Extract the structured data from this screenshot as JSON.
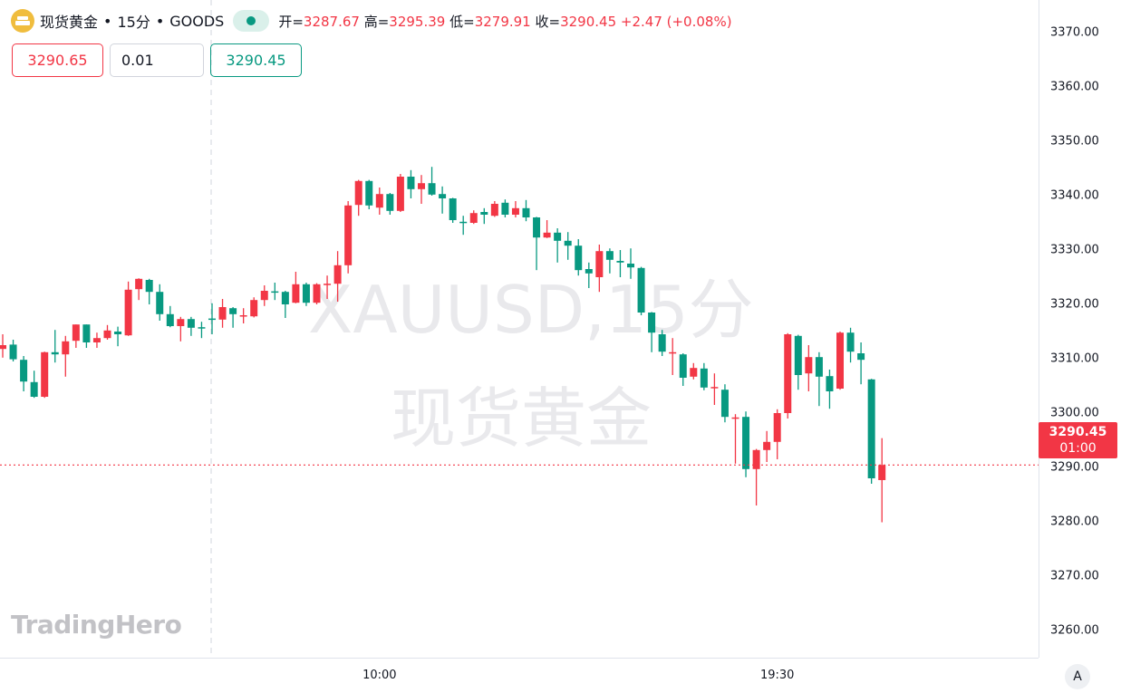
{
  "header": {
    "symbol_name": "现货黄金",
    "interval": "15分",
    "exchange": "GOODS",
    "sep": "•",
    "ohlc_text": [
      {
        "label": "开=",
        "value": "3287.67"
      },
      {
        "label": "高=",
        "value": "3295.39"
      },
      {
        "label": "低=",
        "value": "3279.91"
      },
      {
        "label": "收=",
        "value": "3290.45"
      }
    ],
    "change": "+2.47 (+0.08%)"
  },
  "trade": {
    "sell_price": "3290.65",
    "quantity": "0.01",
    "buy_price": "3290.45"
  },
  "watermark": {
    "line1": "XAUUSD,15分",
    "line2": "现货黄金"
  },
  "logo": "TradingHero",
  "price_label": {
    "price": "3290.45",
    "countdown": "01:00"
  },
  "auto_scale_label": "A",
  "colors": {
    "up": "#f23645",
    "down": "#089981",
    "last_price_line": "#f23645"
  },
  "chart_data": {
    "type": "candlestick",
    "up_color": "#f23645",
    "down_color": "#089981",
    "ylim": [
      3255,
      3375
    ],
    "y_ticks": [
      "3370.00",
      "3360.00",
      "3350.00",
      "3340.00",
      "3330.00",
      "3320.00",
      "3310.00",
      "3300.00",
      "3290.00",
      "3280.00",
      "3270.00",
      "3260.00"
    ],
    "x_ticks": [
      {
        "label": "10:00",
        "index": 36
      },
      {
        "label": "19:30",
        "index": 74
      }
    ],
    "last_price": 3290.45,
    "grid": false,
    "candles": [
      [
        3311.8,
        3314.5,
        3310.2,
        3312.5
      ],
      [
        3312.6,
        3313.5,
        3309.5,
        3309.9
      ],
      [
        3309.8,
        3310.5,
        3304,
        3305.8
      ],
      [
        3305.7,
        3307.8,
        3302.8,
        3303
      ],
      [
        3303,
        3311.3,
        3302.8,
        3311.2
      ],
      [
        3311.2,
        3315.3,
        3309.3,
        3310.8
      ],
      [
        3310.8,
        3314.2,
        3306.7,
        3313.2
      ],
      [
        3313.3,
        3316.3,
        3312,
        3316.3
      ],
      [
        3316.3,
        3316.3,
        3312,
        3313
      ],
      [
        3313,
        3314.8,
        3312,
        3313.8
      ],
      [
        3313.8,
        3316.2,
        3313.5,
        3315.2
      ],
      [
        3315,
        3315.9,
        3312.3,
        3314.5
      ],
      [
        3314.3,
        3324.2,
        3314.2,
        3322.7
      ],
      [
        3322.8,
        3324.8,
        3320.8,
        3324.7
      ],
      [
        3324.5,
        3324.7,
        3320,
        3322.3
      ],
      [
        3322.3,
        3323.7,
        3317,
        3318.2
      ],
      [
        3318.2,
        3319.7,
        3315.8,
        3316
      ],
      [
        3316,
        3317.7,
        3313.2,
        3317.3
      ],
      [
        3317.3,
        3317.7,
        3314.2,
        3315.7
      ],
      [
        3315.8,
        3316.8,
        3313.8,
        3315.6
      ],
      [
        3317.4,
        3320.2,
        3314.5,
        3317.2
      ],
      [
        3317.2,
        3321,
        3315.7,
        3319.5
      ],
      [
        3319.3,
        3319.5,
        3315.7,
        3318.2
      ],
      [
        3317.8,
        3319.3,
        3316.5,
        3318
      ],
      [
        3317.8,
        3321.3,
        3317.6,
        3320.8
      ],
      [
        3320.8,
        3323.5,
        3319.7,
        3322.5
      ],
      [
        3322.4,
        3324,
        3320.8,
        3322.2
      ],
      [
        3322.3,
        3322.5,
        3317.5,
        3320
      ],
      [
        3320.3,
        3326,
        3320.2,
        3323.7
      ],
      [
        3323.7,
        3324,
        3319.7,
        3320.3
      ],
      [
        3320.3,
        3323.9,
        3320,
        3323.7
      ],
      [
        3323.6,
        3325.3,
        3321,
        3323.8
      ],
      [
        3323.8,
        3329.8,
        3320.5,
        3327.2
      ],
      [
        3327.2,
        3339,
        3325.7,
        3338.2
      ],
      [
        3338.3,
        3342.9,
        3336.3,
        3342.7
      ],
      [
        3342.7,
        3342.9,
        3337.5,
        3338.2
      ],
      [
        3337.8,
        3341.5,
        3336.5,
        3340.3
      ],
      [
        3340.3,
        3340.5,
        3336.5,
        3337.2
      ],
      [
        3337.2,
        3344,
        3337,
        3343.5
      ],
      [
        3343.5,
        3344.7,
        3339.5,
        3341.2
      ],
      [
        3341.2,
        3343.8,
        3338.5,
        3342.3
      ],
      [
        3342.3,
        3345.3,
        3340,
        3340.2
      ],
      [
        3340.3,
        3341.7,
        3336.7,
        3339.5
      ],
      [
        3339.5,
        3339.6,
        3335,
        3335.5
      ],
      [
        3335.2,
        3336.3,
        3332.8,
        3335
      ],
      [
        3335,
        3337.3,
        3334.8,
        3336.8
      ],
      [
        3337,
        3337.7,
        3334.8,
        3336.5
      ],
      [
        3336.3,
        3339,
        3336.1,
        3338.5
      ],
      [
        3338.7,
        3339.3,
        3336,
        3336.5
      ],
      [
        3336.5,
        3339,
        3336,
        3337.7
      ],
      [
        3337.7,
        3339.2,
        3335.3,
        3336
      ],
      [
        3336,
        3336.1,
        3326.3,
        3332.3
      ],
      [
        3332.3,
        3335.5,
        3332.2,
        3333.2
      ],
      [
        3333.2,
        3334,
        3327.7,
        3331.7
      ],
      [
        3331.7,
        3333.3,
        3328.2,
        3330.8
      ],
      [
        3330.8,
        3332,
        3325.3,
        3326.3
      ],
      [
        3326.5,
        3327.7,
        3323,
        3325.7
      ],
      [
        3325,
        3331,
        3322.3,
        3329.8
      ],
      [
        3329.8,
        3330.3,
        3325.7,
        3328.2
      ],
      [
        3328,
        3330,
        3325,
        3327.7
      ],
      [
        3327.5,
        3330.3,
        3324.7,
        3326.8
      ],
      [
        3326.7,
        3326.9,
        3318,
        3318.5
      ],
      [
        3318.5,
        3318.6,
        3311.2,
        3314.8
      ],
      [
        3314.5,
        3315.3,
        3310.5,
        3311.3
      ],
      [
        3311,
        3313.8,
        3307,
        3311.2
      ],
      [
        3310.8,
        3311,
        3305,
        3306.5
      ],
      [
        3306.7,
        3309.2,
        3306.2,
        3308.3
      ],
      [
        3308.2,
        3309.2,
        3304.2,
        3304.7
      ],
      [
        3304.6,
        3307.3,
        3301.5,
        3304.8
      ],
      [
        3304.3,
        3305.3,
        3298.3,
        3299.3
      ],
      [
        3299.1,
        3299.8,
        3290.7,
        3299.2
      ],
      [
        3299.3,
        3300.3,
        3288.2,
        3289.7
      ],
      [
        3289.7,
        3293.4,
        3283,
        3293.2
      ],
      [
        3293.2,
        3296.7,
        3291,
        3294.7
      ],
      [
        3294.7,
        3300.7,
        3291.5,
        3300
      ],
      [
        3300,
        3314.7,
        3299,
        3314.5
      ],
      [
        3314.2,
        3314.4,
        3304.3,
        3307
      ],
      [
        3307.3,
        3312.5,
        3304,
        3310.3
      ],
      [
        3310.3,
        3311.2,
        3301.3,
        3306.7
      ],
      [
        3306.8,
        3308,
        3300.8,
        3304
      ],
      [
        3304.5,
        3315,
        3304.3,
        3314.8
      ],
      [
        3314.8,
        3315.7,
        3309.3,
        3311.3
      ],
      [
        3311,
        3313,
        3305.3,
        3309.8
      ],
      [
        3306.2,
        3306.3,
        3287,
        3288
      ],
      [
        3287.67,
        3295.39,
        3279.91,
        3290.45
      ]
    ]
  }
}
